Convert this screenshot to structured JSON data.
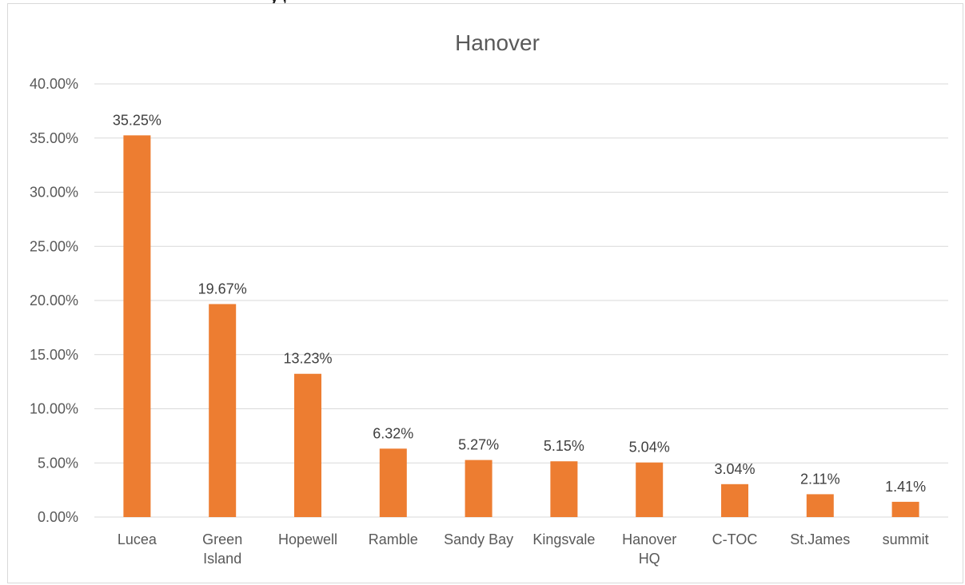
{
  "top_strip_text": "y                                                     ,",
  "chart_data": {
    "type": "bar",
    "title": "Hanover",
    "xlabel": "",
    "ylabel": "",
    "categories": [
      [
        "Lucea"
      ],
      [
        "Green",
        "Island"
      ],
      [
        "Hopewell"
      ],
      [
        "Ramble"
      ],
      [
        "Sandy Bay"
      ],
      [
        "Kingsvale"
      ],
      [
        "Hanover",
        "HQ"
      ],
      [
        "C-TOC"
      ],
      [
        "St.James"
      ],
      [
        "summit"
      ]
    ],
    "values": [
      35.25,
      19.67,
      13.23,
      6.32,
      5.27,
      5.15,
      5.04,
      3.04,
      2.11,
      1.41
    ],
    "data_labels": [
      "35.25%",
      "19.67%",
      "13.23%",
      "6.32%",
      "5.27%",
      "5.15%",
      "5.04%",
      "3.04%",
      "2.11%",
      "1.41%"
    ],
    "yticks": [
      0,
      5,
      10,
      15,
      20,
      25,
      30,
      35,
      40
    ],
    "ytick_labels": [
      "0.00%",
      "5.00%",
      "10.00%",
      "15.00%",
      "20.00%",
      "25.00%",
      "30.00%",
      "35.00%",
      "40.00%"
    ],
    "ylim": [
      0,
      40
    ],
    "grid": true,
    "legend": "none",
    "bar_color": "#ed7d31"
  }
}
